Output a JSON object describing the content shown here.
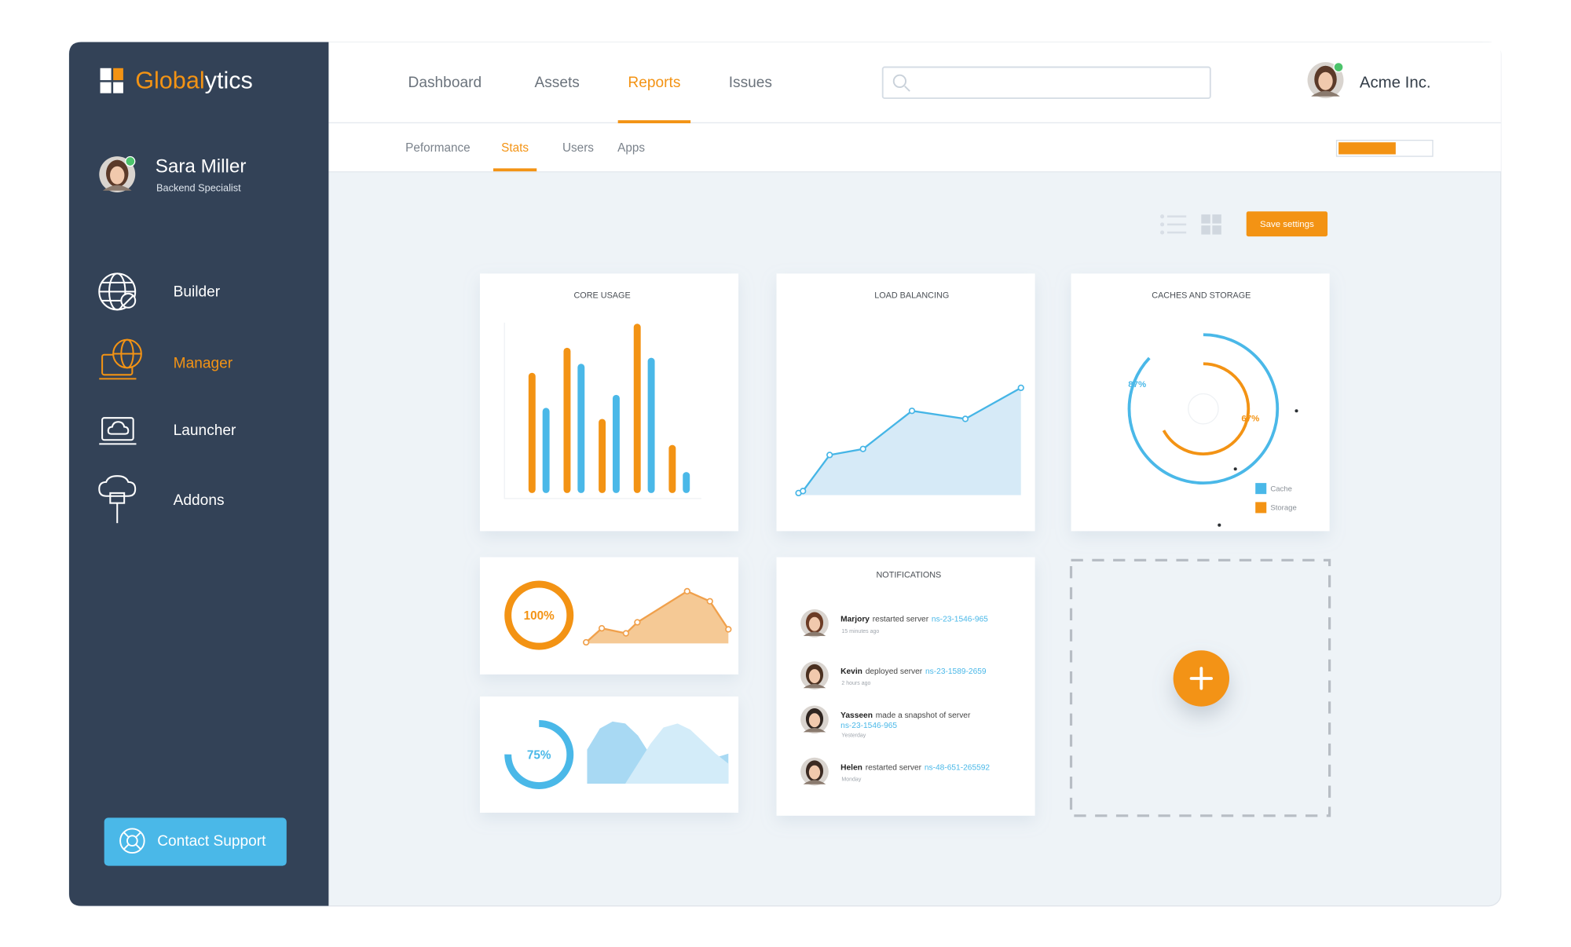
{
  "brand": {
    "parts": [
      "Global",
      "ytics"
    ]
  },
  "profile": {
    "name": "Sara Miller",
    "role": "Backend Specialist"
  },
  "sidebar_nav": {
    "items": [
      "Builder",
      "Manager",
      "Launcher",
      "Addons"
    ],
    "active": 1
  },
  "contact_button": "Contact Support",
  "top_nav": {
    "items": [
      "Dashboard",
      "Assets",
      "Reports",
      "Issues"
    ],
    "active": 2
  },
  "account": "Acme Inc.",
  "sub_nav": {
    "items": [
      "Peformance",
      "Stats",
      "Users",
      "Apps"
    ],
    "active": 1
  },
  "progress": {
    "value": 62,
    "lim": [
      0,
      100
    ],
    "color": "#f39314"
  },
  "save_button": "Save settings",
  "widgets": {
    "core_usage": {
      "type": "bar",
      "title": "CORE USAGE",
      "series": [
        {
          "color": "#f39314",
          "values": [
            120,
            145,
            74,
            169,
            48
          ]
        },
        {
          "color": "#4ab8e8",
          "values": [
            85,
            129,
            98,
            135,
            21
          ]
        }
      ],
      "ylim": [
        0,
        180
      ]
    },
    "load_balancing": {
      "type": "area",
      "title": "LOAD BALANCING",
      "x": [
        0,
        2,
        14,
        29,
        51,
        75,
        100
      ],
      "values": [
        2,
        4,
        40,
        46,
        84,
        76,
        107
      ],
      "xlim": [
        0,
        100
      ],
      "ylim": [
        0,
        120
      ],
      "color": "#45b5e6",
      "fill": "#d6eaf7"
    },
    "caches_storage": {
      "type": "donut",
      "title": "CACHES AND STORAGE",
      "lim": [
        0,
        100
      ],
      "series": [
        {
          "name": "Cache",
          "color": "#4ab8e8",
          "value": 87,
          "value_label": "87%"
        },
        {
          "name": "Storage",
          "color": "#f39314",
          "value": 67,
          "value_label": "67%"
        }
      ]
    },
    "mini_orange": {
      "gauge": {
        "type": "gauge",
        "value": 100,
        "value_label": "100%",
        "lim": [
          0,
          100
        ],
        "color": "#f39314"
      },
      "area": {
        "type": "area",
        "x": [
          0,
          11,
          28,
          36,
          71,
          87,
          100
        ],
        "values": [
          1,
          15,
          10,
          21,
          52,
          42,
          14
        ],
        "xlim": [
          0,
          100
        ],
        "ylim": [
          0,
          60
        ],
        "color": "#f0a04b",
        "fill": "#f5c995"
      }
    },
    "mini_blue": {
      "gauge": {
        "type": "gauge",
        "value": 75,
        "value_label": "75%",
        "lim": [
          0,
          100
        ],
        "color": "#4ab8e8"
      },
      "area": {
        "type": "area",
        "x": [
          0,
          9,
          18,
          27,
          36,
          45,
          54,
          64,
          73,
          82,
          91,
          100
        ],
        "xlim": [
          0,
          100
        ],
        "ylim": [
          0,
          62
        ],
        "series": [
          {
            "color": "#a8d9f3",
            "values": [
              34,
              55,
              62,
              60,
              48,
              28,
              14,
              10,
              14,
              20,
              26,
              30
            ]
          },
          {
            "color": "#d3ecf9",
            "values": [
              0,
              0,
              0,
              0,
              20,
              40,
              56,
              60,
              54,
              42,
              30,
              20
            ]
          }
        ]
      }
    },
    "notifications": {
      "title": "NOTIFICATIONS",
      "items": [
        {
          "name": "Marjory",
          "action": "restarted server",
          "link": "ns-23-1546-965",
          "time": "15 minutes ago"
        },
        {
          "name": "Kevin",
          "action": "deployed server",
          "link": "ns-23-1589-2659",
          "time": "2 hours ago"
        },
        {
          "name": "Yasseen",
          "action": "made a snapshot of server",
          "link": "ns-23-1546-965",
          "time": "Yesterday"
        },
        {
          "name": "Helen",
          "action": "restarted server",
          "link": "ns-48-651-265592",
          "time": "Monday"
        }
      ]
    }
  }
}
